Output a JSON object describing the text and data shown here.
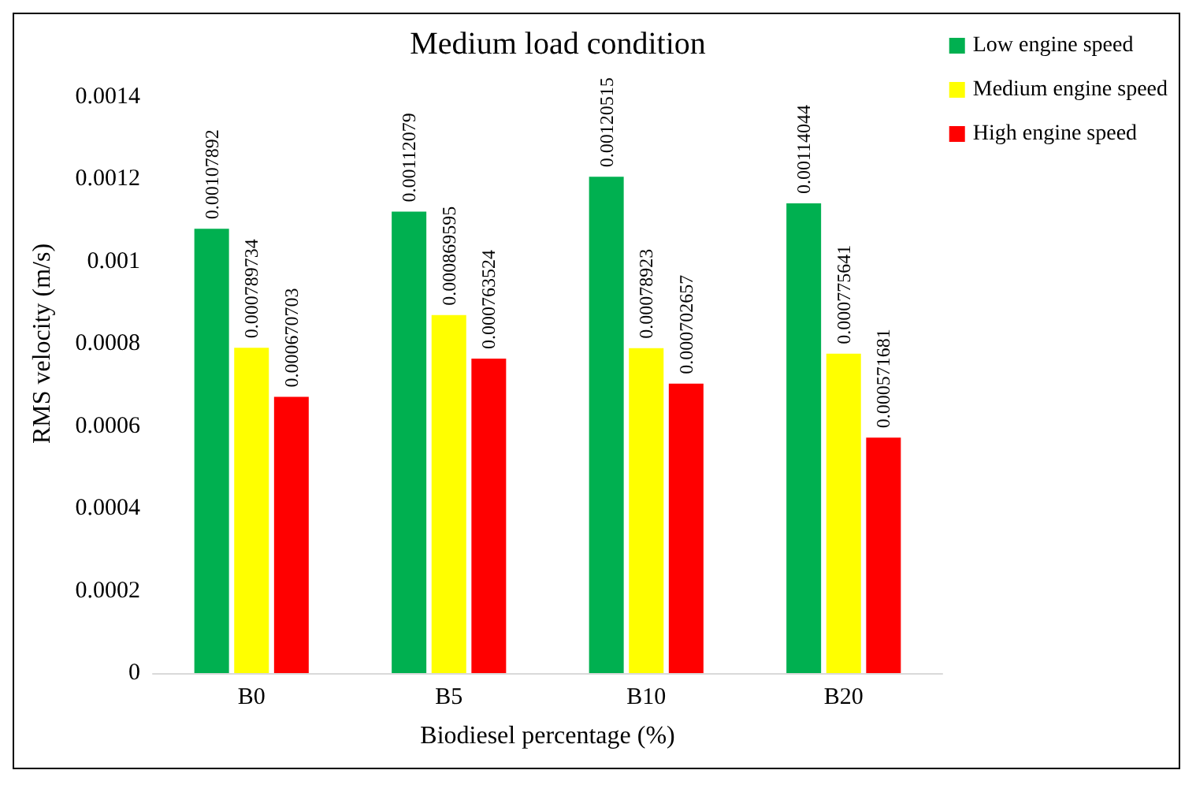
{
  "chart_data": {
    "type": "bar",
    "title": "Medium load condition",
    "xlabel": "Biodiesel percentage (%)",
    "ylabel": "RMS velocity (m/s)",
    "categories": [
      "B0",
      "B5",
      "B10",
      "B20"
    ],
    "series": [
      {
        "name": "Low engine speed",
        "color": "#00b050",
        "values": [
          0.00107892,
          0.00112079,
          0.00120515,
          0.00114044
        ]
      },
      {
        "name": "Medium engine speed",
        "color": "#ffff00",
        "values": [
          0.000789734,
          0.000869595,
          0.00078923,
          0.000775641
        ]
      },
      {
        "name": "High engine speed",
        "color": "#ff0000",
        "values": [
          0.000670703,
          0.000763524,
          0.000702657,
          0.000571681
        ]
      }
    ],
    "ylim": [
      0,
      0.0016
    ],
    "yticks": [
      0,
      0.0002,
      0.0004,
      0.0006,
      0.0008,
      0.001,
      0.0012,
      0.0014
    ],
    "grid": false,
    "legend": "top right",
    "data_labels": true
  }
}
